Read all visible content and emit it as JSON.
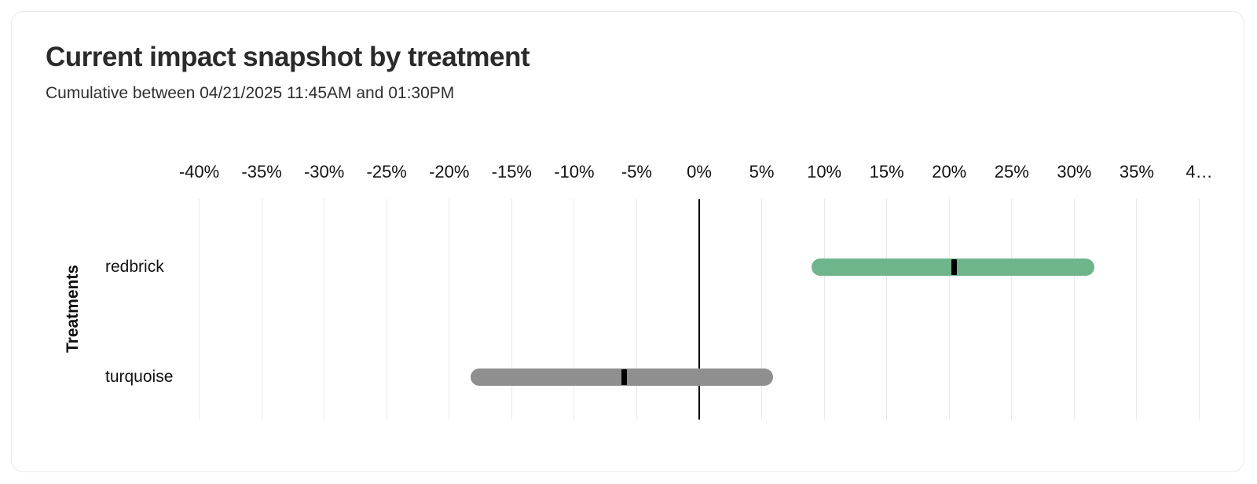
{
  "chart_data": {
    "type": "bar",
    "variant": "horizontal-range-ci",
    "title": "Current impact snapshot by treatment",
    "subtitle": "Cumulative between 04/21/2025 11:45AM and 01:30PM",
    "xlabel": "",
    "ylabel": "Treatments",
    "xlim": [
      -42.5,
      42.5
    ],
    "grid": true,
    "zero_line": true,
    "legend": "none",
    "x_tick_values": [
      -40,
      -35,
      -30,
      -25,
      -20,
      -15,
      -10,
      -5,
      0,
      5,
      10,
      15,
      20,
      25,
      30,
      35,
      40
    ],
    "x_tick_labels": [
      "-40%",
      "-35%",
      "-30%",
      "-25%",
      "-20%",
      "-15%",
      "-10%",
      "-5%",
      "0%",
      "5%",
      "10%",
      "15%",
      "20%",
      "25%",
      "30%",
      "35%",
      "4…"
    ],
    "categories": [
      "redbrick",
      "turquoise"
    ],
    "series": [
      {
        "name": "redbrick",
        "value": 20.4,
        "ci_low": 9.0,
        "ci_high": 31.6,
        "bar_color": "#6fb58b",
        "marker_color": "#000000"
      },
      {
        "name": "turquoise",
        "value": -6.0,
        "ci_low": -18.3,
        "ci_high": 5.9,
        "bar_color": "#8f8f8f",
        "marker_color": "#000000"
      }
    ]
  },
  "colors": {
    "background": "#ffffff",
    "card_border": "#e9e9e9",
    "gridline": "#e9e9e9",
    "zero_line": "#000000",
    "title_text": "#2b2b2b",
    "subtitle_text": "#2f2f2f",
    "axis_text": "#111111",
    "positive_bar": "#6fb58b",
    "neutral_bar": "#8f8f8f",
    "marker": "#000000"
  }
}
